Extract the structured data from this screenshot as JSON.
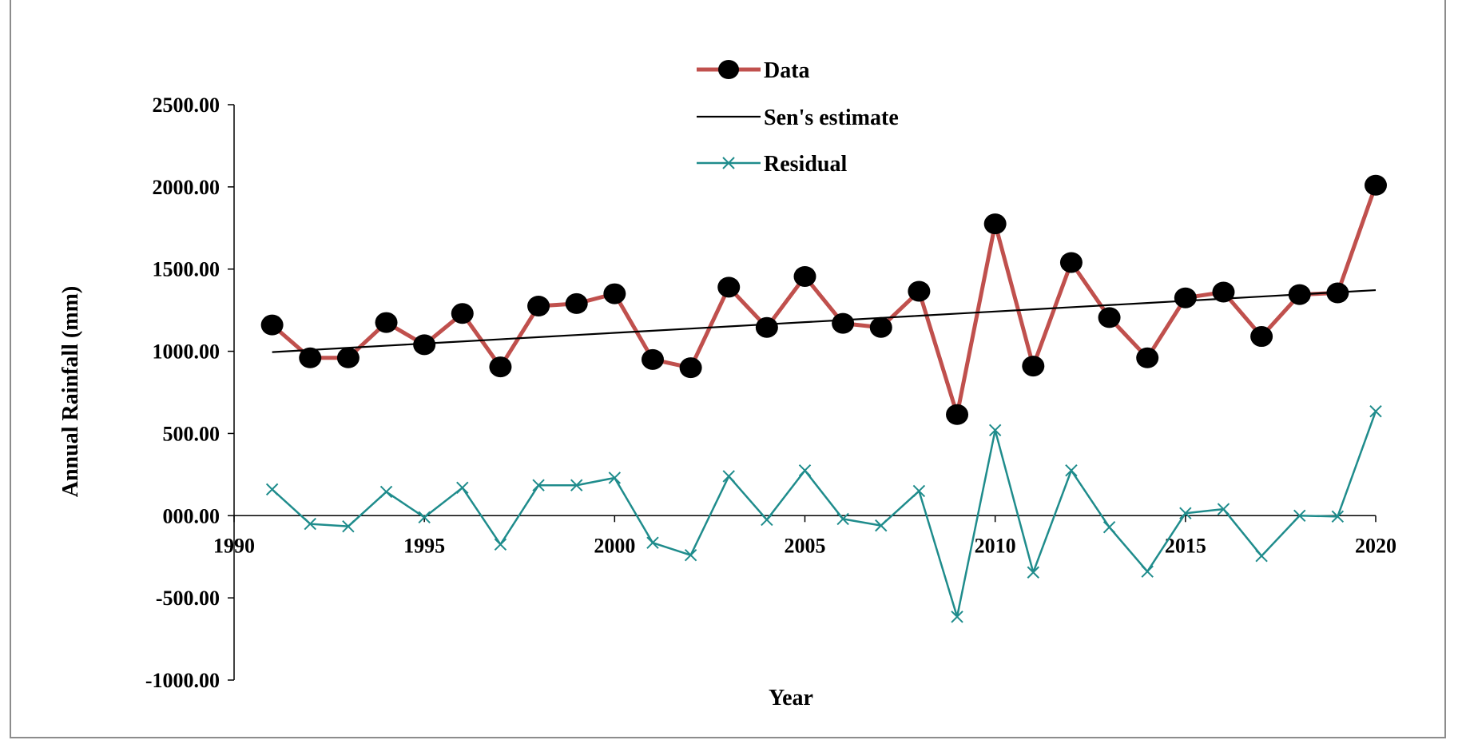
{
  "chart_data": {
    "type": "line",
    "xlabel": "Year",
    "ylabel": "Annual  Rainfall (mm)",
    "xlim": [
      1990,
      2020
    ],
    "ylim": [
      -1000,
      2500
    ],
    "x_ticks": [
      "1990",
      "1995",
      "2000",
      "2005",
      "2010",
      "2015",
      "2020"
    ],
    "y_ticks": [
      "2500.00",
      "2000.00",
      "1500.00",
      "1000.00",
      "500.00",
      "000.00",
      "-500.00",
      "-1000.00"
    ],
    "legend_position": "top-center",
    "x": [
      1991,
      1992,
      1993,
      1994,
      1995,
      1996,
      1997,
      1998,
      1999,
      2000,
      2001,
      2002,
      2003,
      2004,
      2005,
      2006,
      2007,
      2008,
      2009,
      2010,
      2011,
      2012,
      2013,
      2014,
      2015,
      2016,
      2017,
      2018,
      2019,
      2020
    ],
    "series": [
      {
        "name": "Data",
        "color": "#c0504d",
        "marker": "circle",
        "values": [
          1160,
          960,
          960,
          1175,
          1040,
          1230,
          905,
          1275,
          1290,
          1350,
          950,
          900,
          1390,
          1145,
          1455,
          1170,
          1145,
          1365,
          615,
          1775,
          910,
          1540,
          1205,
          960,
          1325,
          1360,
          1090,
          1345,
          1355,
          2010
        ]
      },
      {
        "name": "Sen's estimate",
        "color": "#000000",
        "marker": "none",
        "values": [
          995,
          1008,
          1021,
          1034,
          1047,
          1060,
          1073,
          1086,
          1099,
          1112,
          1125,
          1138,
          1151,
          1164,
          1177,
          1190,
          1203,
          1216,
          1229,
          1242,
          1255,
          1268,
          1281,
          1294,
          1307,
          1320,
          1333,
          1346,
          1359,
          1372
        ]
      },
      {
        "name": "Residual",
        "color": "#1f8c8c",
        "marker": "x",
        "values": [
          160,
          -50,
          -65,
          145,
          -10,
          170,
          -175,
          185,
          185,
          230,
          -165,
          -240,
          240,
          -25,
          275,
          -20,
          -60,
          150,
          -615,
          520,
          -345,
          275,
          -70,
          -340,
          15,
          40,
          -245,
          0,
          -5,
          635
        ]
      }
    ]
  }
}
